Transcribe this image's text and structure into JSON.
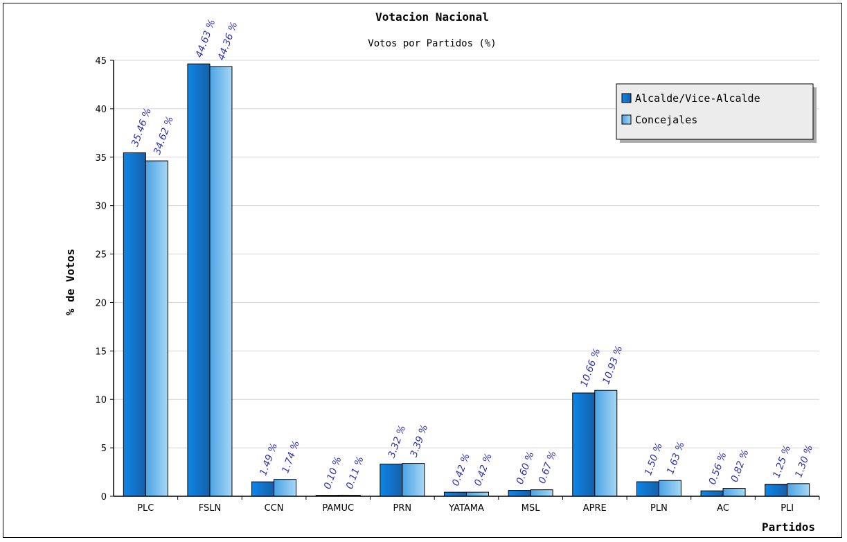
{
  "chart_data": {
    "type": "bar",
    "title": "Votacion Nacional",
    "subtitle": "Votos por Partidos (%)",
    "xlabel": "Partidos",
    "ylabel": "% de Votos",
    "ylim": [
      0,
      45
    ],
    "yticks": [
      0,
      5,
      10,
      15,
      20,
      25,
      30,
      35,
      40,
      45
    ],
    "grid": true,
    "legend_position": "top-right",
    "categories": [
      "PLC",
      "FSLN",
      "CCN",
      "PAMUC",
      "PRN",
      "YATAMA",
      "MSL",
      "APRE",
      "PLN",
      "AC",
      "PLI"
    ],
    "series": [
      {
        "name": "Alcalde/Vice-Alcalde",
        "color": "#1f7fd6",
        "values": [
          35.46,
          44.63,
          1.49,
          0.1,
          3.32,
          0.42,
          0.6,
          10.66,
          1.5,
          0.56,
          1.25
        ],
        "labels": [
          "35.46 %",
          "44.63 %",
          "1.49 %",
          "0.10 %",
          "3.32 %",
          "0.42 %",
          "0.60 %",
          "10.66 %",
          "1.50 %",
          "0.56 %",
          "1.25 %"
        ]
      },
      {
        "name": "Concejales",
        "color": "#7cc0ec",
        "values": [
          34.62,
          44.36,
          1.74,
          0.11,
          3.39,
          0.42,
          0.67,
          10.93,
          1.63,
          0.82,
          1.3
        ],
        "labels": [
          "34.62 %",
          "44.36 %",
          "1.74 %",
          "0.11 %",
          "3.39 %",
          "0.42 %",
          "0.67 %",
          "10.93 %",
          "1.63 %",
          "0.82 %",
          "1.30 %"
        ]
      }
    ]
  }
}
